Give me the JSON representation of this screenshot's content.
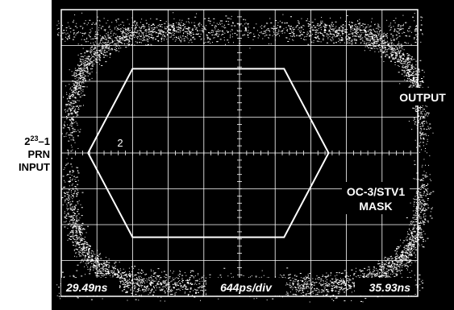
{
  "chart_data": {
    "type": "eye-diagram",
    "input_label": {
      "base": "2",
      "exponent": "23",
      "suffix": "–1",
      "line2": "PRN",
      "line3": "INPUT"
    },
    "output_label": "OUTPUT",
    "mask_label_line1": "OC-3/STV1",
    "mask_label_line2": "MASK",
    "mask_region_label": "2",
    "time_start": "29.49ns",
    "time_per_div": "644ps/div",
    "time_end": "35.93ns",
    "x_divisions": 10,
    "y_divisions": 8,
    "mask_polygon_divisions": [
      [
        0.75,
        4.0
      ],
      [
        2.0,
        1.65
      ],
      [
        6.25,
        1.65
      ],
      [
        7.5,
        4.0
      ],
      [
        6.25,
        6.35
      ],
      [
        2.0,
        6.35
      ]
    ],
    "colors": {
      "screen": "#000000",
      "trace": "#ffffff",
      "grid": "#ffffff",
      "label_box": "#000000"
    }
  }
}
